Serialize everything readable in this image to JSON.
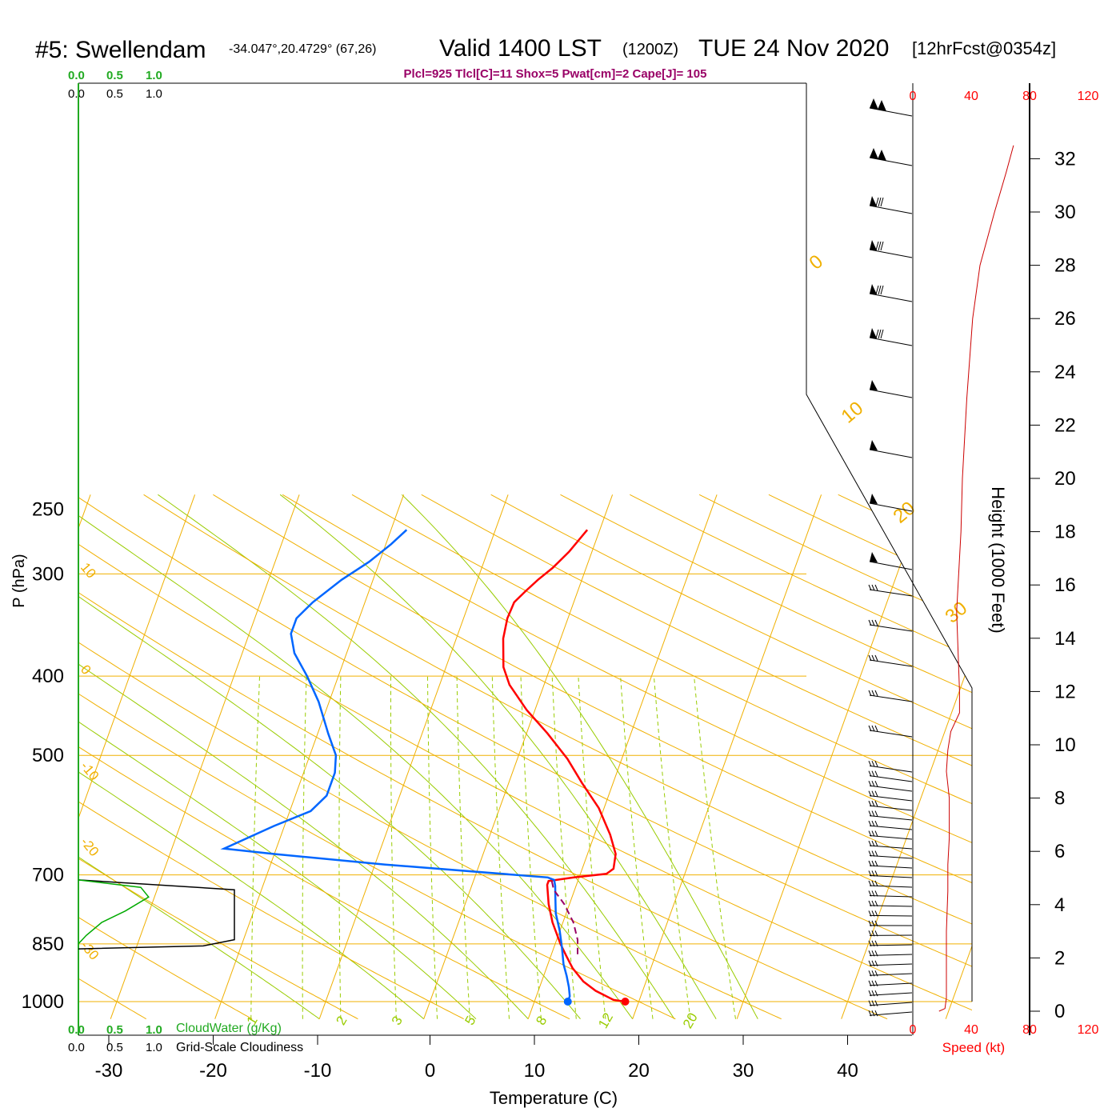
{
  "header": {
    "site": "#5: Swellendam",
    "coords": "-34.047°,20.4729° (67,26)",
    "valid": "Valid 1400 LST",
    "zulu": "(1200Z)",
    "date": "TUE 24 Nov 2020",
    "forecast": "[12hrFcst@0354z]",
    "params": "Plcl=925 Tlcl[C]=11 Shox=5 Pwat[cm]=2 Cape[J]= 105"
  },
  "cloud_scale": {
    "cloudwater_ticks": [
      "0.0",
      "0.5",
      "1.0"
    ],
    "cloudiness_ticks": [
      "0.0",
      "0.5",
      "1.0"
    ],
    "cloudwater_label": "CloudWater (g/Kg)",
    "cloudiness_label": "Grid-Scale Cloudiness"
  },
  "speed_axis": {
    "ticks": [
      "0",
      "40",
      "80",
      "120"
    ],
    "label": "Speed (kt)"
  },
  "colors": {
    "isotherm": "#f0b000",
    "dry_adiabat": "#f0b000",
    "moist_adiabat": "#99cc00",
    "mixing_ratio": "#99cc00",
    "temperature": "#ff0000",
    "dewpoint": "#0066ff",
    "parcel": "#990066",
    "cloud_water": "#00aa00",
    "title_params": "#990066"
  },
  "chart_data": {
    "type": "line",
    "subtype": "skew-T log-P sounding",
    "xlabel": "Temperature (C)",
    "ylabel": "P (hPa)",
    "y2label": "Height (1000 Feet)",
    "x_ticks": [
      "-30",
      "-20",
      "-10",
      "0",
      "10",
      "20",
      "30",
      "40"
    ],
    "y_ticks": [
      "250",
      "300",
      "400",
      "500",
      "700",
      "850",
      "1000"
    ],
    "height_ticks": [
      "0",
      "2",
      "4",
      "6",
      "8",
      "10",
      "12",
      "14",
      "16",
      "18",
      "20",
      "22",
      "24",
      "26",
      "28",
      "30",
      "32"
    ],
    "xlim": [
      -34,
      46
    ],
    "ylim": [
      1040,
      250
    ],
    "isotherm_labels": [
      "10",
      "0",
      "-10",
      "-20",
      "-30",
      "0",
      "10",
      "20",
      "30"
    ],
    "mixing_ratio_labels": [
      "1",
      "2",
      "3",
      "5",
      "8",
      "12",
      "20"
    ],
    "series": [
      {
        "name": "Temperature",
        "points": [
          [
            18.7,
            1000
          ],
          [
            17.5,
            995
          ],
          [
            15.5,
            970
          ],
          [
            14,
            945
          ],
          [
            12.5,
            910
          ],
          [
            11.5,
            880
          ],
          [
            10.5,
            850
          ],
          [
            9,
            800
          ],
          [
            8,
            760
          ],
          [
            7.2,
            720
          ],
          [
            7.2,
            712
          ],
          [
            9.5,
            705
          ],
          [
            12.5,
            698
          ],
          [
            13,
            688
          ],
          [
            12.7,
            660
          ],
          [
            11.5,
            625
          ],
          [
            9.5,
            580
          ],
          [
            7,
            540
          ],
          [
            4.8,
            505
          ],
          [
            2,
            470
          ],
          [
            -0.8,
            440
          ],
          [
            -3.3,
            410
          ],
          [
            -4.5,
            390
          ],
          [
            -5.5,
            360
          ],
          [
            -5.8,
            340
          ],
          [
            -5.7,
            325
          ],
          [
            -5,
            315
          ],
          [
            -4.2,
            305
          ],
          [
            -3.2,
            295
          ],
          [
            -2.2,
            282
          ],
          [
            -1.2,
            265
          ]
        ]
      },
      {
        "name": "Dewpoint",
        "points": [
          [
            13.2,
            1000
          ],
          [
            13.2,
            985
          ],
          [
            12.8,
            960
          ],
          [
            12.2,
            930
          ],
          [
            11.5,
            900
          ],
          [
            10.8,
            860
          ],
          [
            10,
            820
          ],
          [
            9,
            780
          ],
          [
            8.4,
            745
          ],
          [
            8,
            722
          ],
          [
            7.7,
            710
          ],
          [
            7,
            705
          ],
          [
            -9,
            680
          ],
          [
            -20,
            660
          ],
          [
            -25,
            650
          ],
          [
            -21,
            610
          ],
          [
            -18,
            585
          ],
          [
            -17,
            560
          ],
          [
            -17,
            525
          ],
          [
            -17.5,
            500
          ],
          [
            -19,
            470
          ],
          [
            -21,
            430
          ],
          [
            -23,
            400
          ],
          [
            -25,
            375
          ],
          [
            -26,
            355
          ],
          [
            -26,
            340
          ],
          [
            -25,
            325
          ],
          [
            -23,
            305
          ],
          [
            -21,
            290
          ],
          [
            -19.5,
            276
          ],
          [
            -18.5,
            265
          ]
        ]
      },
      {
        "name": "Parcel",
        "points": [
          [
            12.5,
            875
          ],
          [
            12,
            840
          ],
          [
            11,
            800
          ],
          [
            9.5,
            760
          ],
          [
            8,
            730
          ],
          [
            7.5,
            712
          ]
        ]
      }
    ],
    "surface_points": {
      "temperature": 18.7,
      "dewpoint": 13.2,
      "pressure": 1000
    },
    "cloud_profile": {
      "cloud_water": [
        [
          0,
          710
        ],
        [
          0.4,
          725
        ],
        [
          0.45,
          745
        ],
        [
          0.3,
          775
        ],
        [
          0.15,
          800
        ],
        [
          0.05,
          830
        ],
        [
          0,
          850
        ]
      ],
      "cloudiness": [
        [
          0,
          710
        ],
        [
          1,
          730
        ],
        [
          1,
          840
        ],
        [
          0.8,
          855
        ],
        [
          0,
          862
        ]
      ]
    },
    "wind_speed_profile_kt": [
      [
        18,
        0
      ],
      [
        22,
        0.1
      ],
      [
        23,
        0.5
      ],
      [
        23,
        1.5
      ],
      [
        23,
        3
      ],
      [
        24,
        4.5
      ],
      [
        24,
        5.5
      ],
      [
        25,
        6.5
      ],
      [
        25,
        8
      ],
      [
        23,
        9
      ],
      [
        24,
        9.8
      ],
      [
        26,
        10.5
      ],
      [
        32,
        11.2
      ],
      [
        32,
        12
      ],
      [
        30,
        15
      ],
      [
        33,
        18
      ],
      [
        34,
        20
      ],
      [
        37,
        23
      ],
      [
        41,
        26
      ],
      [
        46,
        28
      ],
      [
        56,
        30
      ],
      [
        64,
        31.5
      ],
      [
        69,
        32.5
      ]
    ]
  }
}
